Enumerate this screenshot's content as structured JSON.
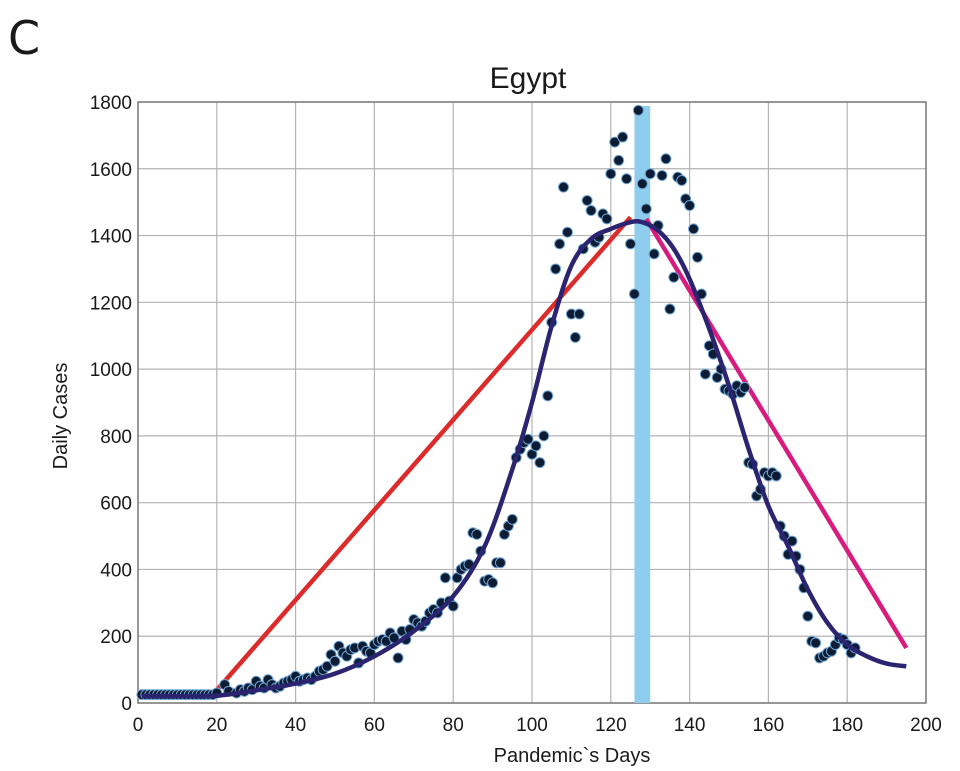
{
  "panel_label": "C",
  "chart_data": {
    "type": "scatter",
    "title": "Egypt",
    "xlabel": "Pandemic`s Days",
    "ylabel": "Daily Cases",
    "xlim": [
      0,
      200
    ],
    "ylim": [
      0,
      1800
    ],
    "xticks": [
      0,
      20,
      40,
      60,
      80,
      100,
      120,
      140,
      160,
      180,
      200
    ],
    "yticks": [
      0,
      200,
      400,
      600,
      800,
      1000,
      1200,
      1400,
      1600,
      1800
    ],
    "grid": true,
    "colors": {
      "points": "#0d1b33",
      "point_edge": "#6fa6d6",
      "fit_curve": "#2b2470",
      "rise_line": "#dd2a2a",
      "decline_line": "#d81b7f",
      "peak_band": "#8ecdee",
      "grid": "#b3b3b3"
    },
    "peak_band": {
      "x_start": 126,
      "x_end": 130
    },
    "points": [
      [
        1,
        25
      ],
      [
        2,
        25
      ],
      [
        3,
        25
      ],
      [
        4,
        25
      ],
      [
        5,
        25
      ],
      [
        6,
        25
      ],
      [
        7,
        25
      ],
      [
        8,
        25
      ],
      [
        9,
        25
      ],
      [
        10,
        25
      ],
      [
        11,
        25
      ],
      [
        12,
        25
      ],
      [
        13,
        25
      ],
      [
        14,
        25
      ],
      [
        15,
        25
      ],
      [
        16,
        25
      ],
      [
        17,
        25
      ],
      [
        18,
        25
      ],
      [
        19,
        25
      ],
      [
        20,
        30
      ],
      [
        22,
        55
      ],
      [
        23,
        35
      ],
      [
        25,
        30
      ],
      [
        26,
        40
      ],
      [
        27,
        35
      ],
      [
        28,
        45
      ],
      [
        29,
        40
      ],
      [
        30,
        65
      ],
      [
        31,
        50
      ],
      [
        32,
        45
      ],
      [
        33,
        70
      ],
      [
        34,
        55
      ],
      [
        35,
        45
      ],
      [
        36,
        50
      ],
      [
        37,
        60
      ],
      [
        38,
        65
      ],
      [
        39,
        70
      ],
      [
        40,
        80
      ],
      [
        41,
        65
      ],
      [
        42,
        70
      ],
      [
        43,
        75
      ],
      [
        44,
        70
      ],
      [
        45,
        80
      ],
      [
        46,
        95
      ],
      [
        47,
        100
      ],
      [
        48,
        110
      ],
      [
        49,
        145
      ],
      [
        50,
        125
      ],
      [
        51,
        170
      ],
      [
        52,
        150
      ],
      [
        53,
        140
      ],
      [
        54,
        160
      ],
      [
        55,
        165
      ],
      [
        56,
        120
      ],
      [
        57,
        170
      ],
      [
        58,
        155
      ],
      [
        59,
        150
      ],
      [
        60,
        175
      ],
      [
        61,
        185
      ],
      [
        62,
        190
      ],
      [
        63,
        185
      ],
      [
        64,
        210
      ],
      [
        65,
        195
      ],
      [
        66,
        135
      ],
      [
        67,
        215
      ],
      [
        68,
        190
      ],
      [
        69,
        220
      ],
      [
        70,
        250
      ],
      [
        71,
        240
      ],
      [
        72,
        230
      ],
      [
        73,
        245
      ],
      [
        74,
        270
      ],
      [
        75,
        280
      ],
      [
        76,
        270
      ],
      [
        77,
        300
      ],
      [
        78,
        375
      ],
      [
        79,
        305
      ],
      [
        80,
        290
      ],
      [
        81,
        375
      ],
      [
        82,
        400
      ],
      [
        83,
        410
      ],
      [
        84,
        415
      ],
      [
        85,
        510
      ],
      [
        86,
        505
      ],
      [
        87,
        455
      ],
      [
        88,
        365
      ],
      [
        89,
        370
      ],
      [
        90,
        360
      ],
      [
        91,
        420
      ],
      [
        92,
        420
      ],
      [
        93,
        505
      ],
      [
        94,
        530
      ],
      [
        95,
        550
      ],
      [
        96,
        735
      ],
      [
        97,
        760
      ],
      [
        98,
        780
      ],
      [
        99,
        790
      ],
      [
        100,
        745
      ],
      [
        101,
        770
      ],
      [
        102,
        720
      ],
      [
        103,
        800
      ],
      [
        104,
        920
      ],
      [
        105,
        1140
      ],
      [
        106,
        1300
      ],
      [
        107,
        1375
      ],
      [
        108,
        1545
      ],
      [
        109,
        1410
      ],
      [
        110,
        1165
      ],
      [
        111,
        1095
      ],
      [
        112,
        1165
      ],
      [
        113,
        1360
      ],
      [
        114,
        1505
      ],
      [
        115,
        1475
      ],
      [
        116,
        1380
      ],
      [
        117,
        1395
      ],
      [
        118,
        1465
      ],
      [
        119,
        1450
      ],
      [
        120,
        1585
      ],
      [
        121,
        1680
      ],
      [
        122,
        1625
      ],
      [
        123,
        1695
      ],
      [
        124,
        1570
      ],
      [
        125,
        1375
      ],
      [
        126,
        1225
      ],
      [
        127,
        1775
      ],
      [
        128,
        1555
      ],
      [
        129,
        1480
      ],
      [
        130,
        1585
      ],
      [
        131,
        1345
      ],
      [
        132,
        1430
      ],
      [
        133,
        1580
      ],
      [
        134,
        1630
      ],
      [
        135,
        1180
      ],
      [
        136,
        1275
      ],
      [
        137,
        1575
      ],
      [
        138,
        1565
      ],
      [
        139,
        1510
      ],
      [
        140,
        1490
      ],
      [
        141,
        1420
      ],
      [
        142,
        1335
      ],
      [
        143,
        1225
      ],
      [
        144,
        985
      ],
      [
        145,
        1070
      ],
      [
        146,
        1045
      ],
      [
        147,
        975
      ],
      [
        148,
        1000
      ],
      [
        149,
        940
      ],
      [
        150,
        935
      ],
      [
        151,
        925
      ],
      [
        152,
        950
      ],
      [
        153,
        930
      ],
      [
        154,
        945
      ],
      [
        155,
        720
      ],
      [
        156,
        715
      ],
      [
        157,
        620
      ],
      [
        158,
        640
      ],
      [
        159,
        690
      ],
      [
        160,
        680
      ],
      [
        161,
        690
      ],
      [
        162,
        680
      ],
      [
        163,
        530
      ],
      [
        164,
        500
      ],
      [
        165,
        445
      ],
      [
        166,
        485
      ],
      [
        167,
        440
      ],
      [
        168,
        400
      ],
      [
        169,
        345
      ],
      [
        170,
        260
      ],
      [
        171,
        185
      ],
      [
        172,
        180
      ],
      [
        173,
        135
      ],
      [
        174,
        140
      ],
      [
        175,
        150
      ],
      [
        176,
        155
      ],
      [
        177,
        175
      ],
      [
        178,
        195
      ],
      [
        179,
        190
      ],
      [
        180,
        175
      ],
      [
        181,
        150
      ],
      [
        182,
        165
      ]
    ],
    "fit_curve": [
      [
        1,
        20
      ],
      [
        10,
        20
      ],
      [
        20,
        22
      ],
      [
        30,
        38
      ],
      [
        40,
        58
      ],
      [
        50,
        88
      ],
      [
        60,
        140
      ],
      [
        70,
        215
      ],
      [
        80,
        320
      ],
      [
        88,
        470
      ],
      [
        95,
        700
      ],
      [
        100,
        900
      ],
      [
        105,
        1130
      ],
      [
        110,
        1310
      ],
      [
        115,
        1390
      ],
      [
        120,
        1420
      ],
      [
        125,
        1440
      ],
      [
        128,
        1440
      ],
      [
        132,
        1415
      ],
      [
        136,
        1360
      ],
      [
        140,
        1270
      ],
      [
        145,
        1120
      ],
      [
        150,
        950
      ],
      [
        155,
        760
      ],
      [
        160,
        590
      ],
      [
        165,
        470
      ],
      [
        170,
        340
      ],
      [
        175,
        240
      ],
      [
        180,
        175
      ],
      [
        185,
        140
      ],
      [
        190,
        118
      ],
      [
        195,
        110
      ]
    ],
    "rise_line": [
      [
        19,
        25
      ],
      [
        125,
        1455
      ]
    ],
    "decline_line": [
      [
        129,
        1450
      ],
      [
        195,
        165
      ]
    ]
  }
}
